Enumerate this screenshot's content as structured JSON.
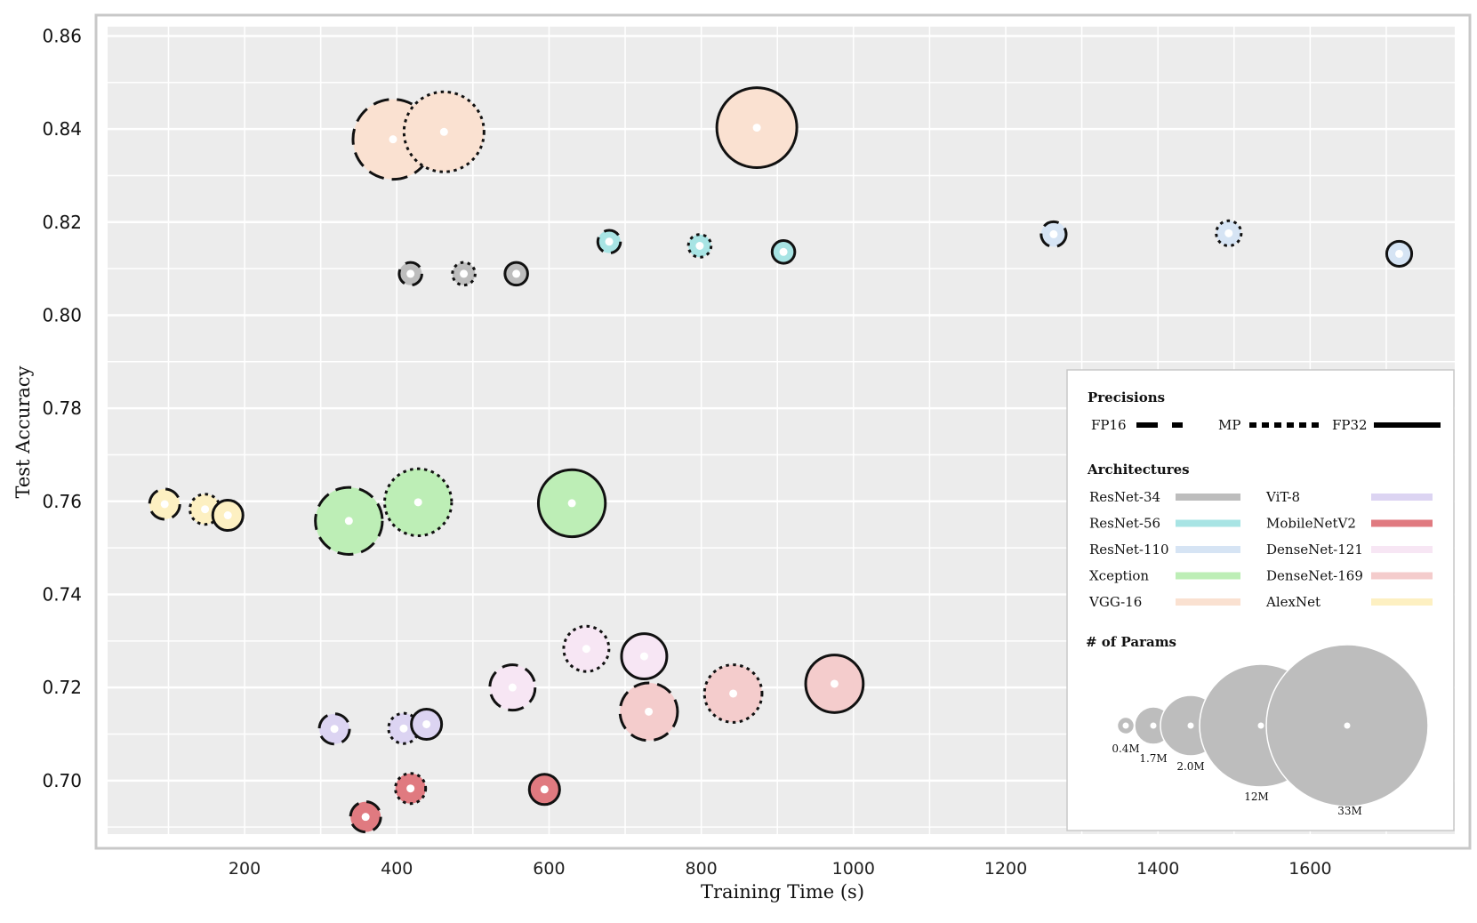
{
  "chart_data": {
    "type": "scatter",
    "title": "",
    "xlabel": "Training Time (s)",
    "ylabel": "Test Accuracy",
    "xlim": [
      20,
      1790
    ],
    "ylim": [
      0.6885,
      0.862
    ],
    "xticks": [
      "200",
      "400",
      "600",
      "800",
      "1000",
      "1200",
      "1400",
      "1600"
    ],
    "yticks": [
      "0.70",
      "0.72",
      "0.74",
      "0.76",
      "0.78",
      "0.80",
      "0.82",
      "0.84",
      "0.86"
    ],
    "grid": true,
    "background": "#ececec",
    "legend": {
      "position": "lower-right",
      "precisions_title": "Precisions",
      "precisions": [
        {
          "label": "FP16",
          "dash": "dashed"
        },
        {
          "label": "MP",
          "dash": "dotted"
        },
        {
          "label": "FP32",
          "dash": "solid"
        }
      ],
      "architectures_title": "Architectures",
      "params_title": "# of Params",
      "param_sizes": [
        {
          "label": "0.4M",
          "params_m": 0.4
        },
        {
          "label": "1.7M",
          "params_m": 1.7
        },
        {
          "label": "2.0M",
          "params_m": 2.0
        },
        {
          "label": "12M",
          "params_m": 12
        },
        {
          "label": "33M",
          "params_m": 33
        }
      ],
      "size_color": "#bdbdbd"
    },
    "architectures": [
      {
        "name": "ResNet-34",
        "color": "#bdbdbd"
      },
      {
        "name": "ResNet-56",
        "color": "#a8e4e4"
      },
      {
        "name": "ResNet-110",
        "color": "#d6e4f4"
      },
      {
        "name": "Xception",
        "color": "#bdeeb6"
      },
      {
        "name": "VGG-16",
        "color": "#fae1d1"
      },
      {
        "name": "ViT-8",
        "color": "#dcd4f2"
      },
      {
        "name": "MobileNetV2",
        "color": "#e07a80"
      },
      {
        "name": "DenseNet-121",
        "color": "#f7e6f4"
      },
      {
        "name": "DenseNet-169",
        "color": "#f4cccc"
      },
      {
        "name": "AlexNet",
        "color": "#fdf0c2"
      }
    ],
    "series": [
      {
        "name": "ResNet-34",
        "params_m": 0.4,
        "points": [
          {
            "precision": "FP16",
            "time": 418,
            "acc": 0.8089
          },
          {
            "precision": "MP",
            "time": 488,
            "acc": 0.8089
          },
          {
            "precision": "FP32",
            "time": 557,
            "acc": 0.8089
          }
        ]
      },
      {
        "name": "ResNet-56",
        "params_m": 0.4,
        "points": [
          {
            "precision": "FP16",
            "time": 679,
            "acc": 0.8158
          },
          {
            "precision": "MP",
            "time": 798,
            "acc": 0.8149
          },
          {
            "precision": "FP32",
            "time": 908,
            "acc": 0.8136
          }
        ]
      },
      {
        "name": "ResNet-110",
        "params_m": 0.7,
        "points": [
          {
            "precision": "FP16",
            "time": 1263,
            "acc": 0.8174
          },
          {
            "precision": "MP",
            "time": 1493,
            "acc": 0.8176
          },
          {
            "precision": "FP32",
            "time": 1717,
            "acc": 0.8132
          }
        ]
      },
      {
        "name": "Xception",
        "params_m": 21,
        "points": [
          {
            "precision": "FP16",
            "time": 337,
            "acc": 0.7558
          },
          {
            "precision": "MP",
            "time": 428,
            "acc": 0.7598
          },
          {
            "precision": "FP32",
            "time": 630,
            "acc": 0.7596
          }
        ]
      },
      {
        "name": "VGG-16",
        "params_m": 33,
        "points": [
          {
            "precision": "FP16",
            "time": 395,
            "acc": 0.8378
          },
          {
            "precision": "MP",
            "time": 462,
            "acc": 0.8394
          },
          {
            "precision": "FP32",
            "time": 873,
            "acc": 0.8403
          }
        ]
      },
      {
        "name": "ViT-8",
        "params_m": 1.7,
        "points": [
          {
            "precision": "FP16",
            "time": 318,
            "acc": 0.7111
          },
          {
            "precision": "MP",
            "time": 409,
            "acc": 0.7112
          },
          {
            "precision": "FP32",
            "time": 439,
            "acc": 0.7121
          }
        ]
      },
      {
        "name": "MobileNetV2",
        "params_m": 1.7,
        "points": [
          {
            "precision": "FP16",
            "time": 359,
            "acc": 0.6922
          },
          {
            "precision": "MP",
            "time": 418,
            "acc": 0.6983
          },
          {
            "precision": "FP32",
            "time": 594,
            "acc": 0.6981
          }
        ]
      },
      {
        "name": "DenseNet-121",
        "params_m": 7,
        "points": [
          {
            "precision": "FP16",
            "time": 552,
            "acc": 0.72
          },
          {
            "precision": "MP",
            "time": 649,
            "acc": 0.7283
          },
          {
            "precision": "FP32",
            "time": 725,
            "acc": 0.7267
          }
        ]
      },
      {
        "name": "DenseNet-169",
        "params_m": 14,
        "points": [
          {
            "precision": "FP16",
            "time": 731,
            "acc": 0.7148
          },
          {
            "precision": "MP",
            "time": 842,
            "acc": 0.7187
          },
          {
            "precision": "FP32",
            "time": 975,
            "acc": 0.7208
          }
        ]
      },
      {
        "name": "AlexNet",
        "params_m": 1.7,
        "points": [
          {
            "precision": "FP16",
            "time": 95,
            "acc": 0.7594
          },
          {
            "precision": "MP",
            "time": 148,
            "acc": 0.7583
          },
          {
            "precision": "FP32",
            "time": 178,
            "acc": 0.757
          }
        ]
      }
    ]
  }
}
